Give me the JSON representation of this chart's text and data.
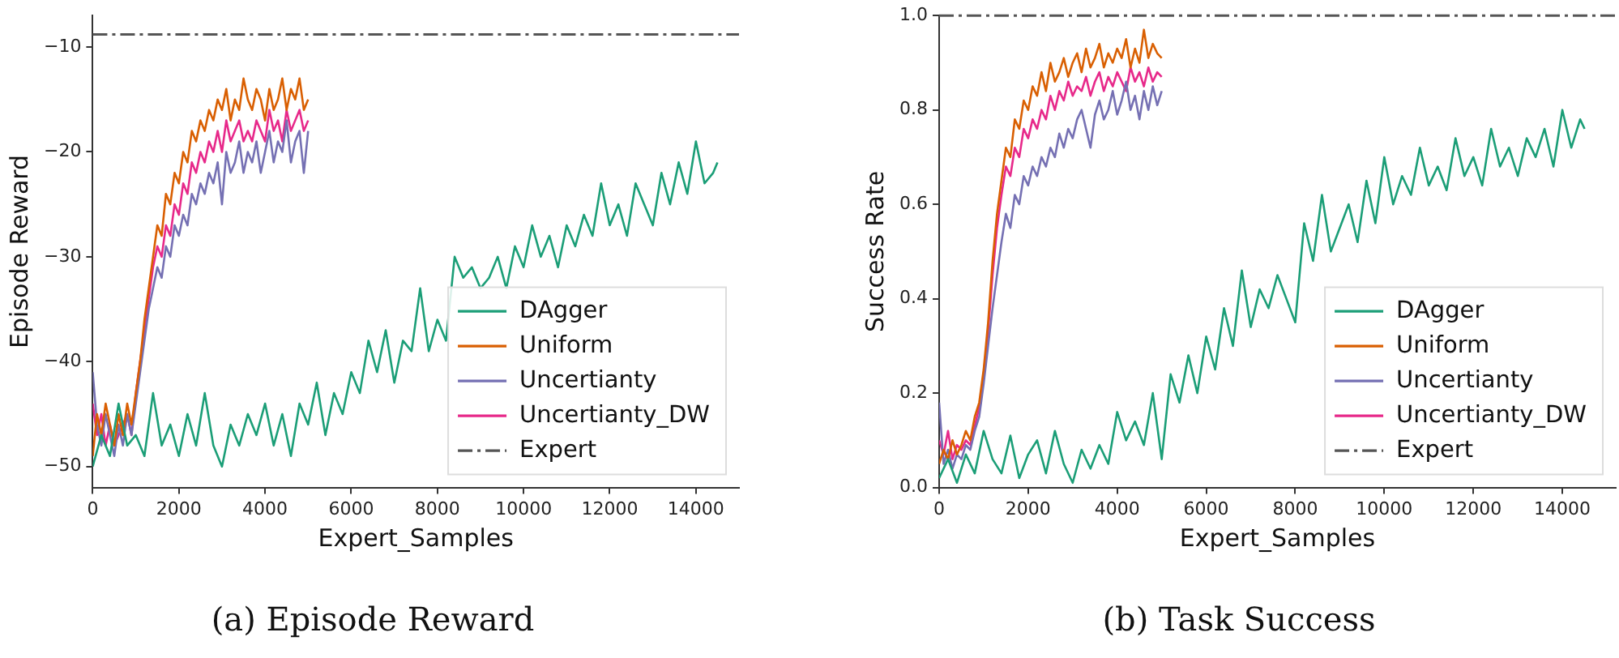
{
  "chart_data": [
    {
      "type": "line",
      "title": "(a) Episode Reward",
      "xlabel": "Expert_Samples",
      "ylabel": "Episode Reward",
      "xlim": [
        0,
        15000
      ],
      "ylim": [
        -52,
        -7
      ],
      "xticks": [
        0,
        2000,
        4000,
        6000,
        8000,
        10000,
        12000,
        14000
      ],
      "yticks": [
        {
          "value": -50,
          "label": "−50"
        },
        {
          "value": -40,
          "label": "−40"
        },
        {
          "value": -30,
          "label": "−30"
        },
        {
          "value": -20,
          "label": "−20"
        },
        {
          "value": -10,
          "label": "−10"
        }
      ],
      "grid": false,
      "legend": "bottom right",
      "marker": "none",
      "series": [
        {
          "name": "DAgger",
          "color": "#1b9e77",
          "x": [
            0,
            200,
            400,
            600,
            800,
            1000,
            1200,
            1400,
            1600,
            1800,
            2000,
            2200,
            2400,
            2600,
            2800,
            3000,
            3200,
            3400,
            3600,
            3800,
            4000,
            4200,
            4400,
            4600,
            4800,
            5000,
            5200,
            5400,
            5600,
            5800,
            6000,
            6200,
            6400,
            6600,
            6800,
            7000,
            7200,
            7400,
            7600,
            7800,
            8000,
            8200,
            8400,
            8600,
            8800,
            9000,
            9200,
            9400,
            9600,
            9800,
            10000,
            10200,
            10400,
            10600,
            10800,
            11000,
            11200,
            11400,
            11600,
            11800,
            12000,
            12200,
            12400,
            12600,
            12800,
            13000,
            13200,
            13400,
            13600,
            13800,
            14000,
            14200,
            14400,
            14500
          ],
          "values": [
            -50,
            -47,
            -49,
            -44,
            -48,
            -47,
            -49,
            -43,
            -48,
            -46,
            -49,
            -45,
            -48,
            -43,
            -48,
            -50,
            -46,
            -48,
            -45,
            -47,
            -44,
            -48,
            -45,
            -49,
            -44,
            -46,
            -42,
            -47,
            -43,
            -45,
            -41,
            -43,
            -38,
            -41,
            -37,
            -42,
            -38,
            -39,
            -33,
            -39,
            -36,
            -38,
            -30,
            -32,
            -31,
            -33,
            -32,
            -30,
            -33,
            -29,
            -31,
            -27,
            -30,
            -28,
            -31,
            -27,
            -29,
            -26,
            -28,
            -23,
            -27,
            -25,
            -28,
            -23,
            -25,
            -27,
            -22,
            -25,
            -21,
            -24,
            -19,
            -23,
            -22,
            -21
          ]
        },
        {
          "name": "Uniform",
          "color": "#d95f02",
          "x": [
            0,
            100,
            200,
            300,
            400,
            500,
            600,
            700,
            800,
            900,
            1000,
            1100,
            1200,
            1300,
            1400,
            1500,
            1600,
            1700,
            1800,
            1900,
            2000,
            2100,
            2200,
            2300,
            2400,
            2500,
            2600,
            2700,
            2800,
            2900,
            3000,
            3100,
            3200,
            3300,
            3400,
            3500,
            3600,
            3700,
            3800,
            3900,
            4000,
            4100,
            4200,
            4300,
            4400,
            4500,
            4600,
            4700,
            4800,
            4900,
            5000
          ],
          "values": [
            -49,
            -45,
            -47,
            -44,
            -46,
            -48,
            -45,
            -47,
            -44,
            -46,
            -43,
            -40,
            -36,
            -33,
            -30,
            -27,
            -28,
            -24,
            -25,
            -22,
            -23,
            -20,
            -21,
            -18,
            -19,
            -17,
            -18,
            -16,
            -17,
            -15,
            -16,
            -14,
            -17,
            -15,
            -16,
            -13,
            -15,
            -16,
            -14,
            -15,
            -17,
            -14,
            -16,
            -15,
            -13,
            -16,
            -14,
            -15,
            -13,
            -16,
            -15
          ]
        },
        {
          "name": "Uncertianty",
          "color": "#7570b3",
          "x": [
            0,
            100,
            200,
            300,
            400,
            500,
            600,
            700,
            800,
            900,
            1000,
            1100,
            1200,
            1300,
            1400,
            1500,
            1600,
            1700,
            1800,
            1900,
            2000,
            2100,
            2200,
            2300,
            2400,
            2500,
            2600,
            2700,
            2800,
            2900,
            3000,
            3100,
            3200,
            3300,
            3400,
            3500,
            3600,
            3700,
            3800,
            3900,
            4000,
            4100,
            4200,
            4300,
            4400,
            4500,
            4600,
            4700,
            4800,
            4900,
            5000
          ],
          "values": [
            -41,
            -46,
            -48,
            -45,
            -47,
            -49,
            -46,
            -48,
            -45,
            -47,
            -44,
            -41,
            -38,
            -35,
            -33,
            -31,
            -32,
            -29,
            -30,
            -27,
            -28,
            -26,
            -27,
            -24,
            -25,
            -23,
            -24,
            -22,
            -23,
            -21,
            -25,
            -20,
            -22,
            -21,
            -19,
            -22,
            -20,
            -21,
            -19,
            -22,
            -20,
            -18,
            -21,
            -19,
            -20,
            -17,
            -21,
            -19,
            -18,
            -22,
            -18
          ]
        },
        {
          "name": "Uncertianty_DW",
          "color": "#e7298a",
          "x": [
            0,
            100,
            200,
            300,
            400,
            500,
            600,
            700,
            800,
            900,
            1000,
            1100,
            1200,
            1300,
            1400,
            1500,
            1600,
            1700,
            1800,
            1900,
            2000,
            2100,
            2200,
            2300,
            2400,
            2500,
            2600,
            2700,
            2800,
            2900,
            3000,
            3100,
            3200,
            3300,
            3400,
            3500,
            3600,
            3700,
            3800,
            3900,
            4000,
            4100,
            4200,
            4300,
            4400,
            4500,
            4600,
            4700,
            4800,
            4900,
            5000
          ],
          "values": [
            -44,
            -47,
            -45,
            -48,
            -46,
            -48,
            -47,
            -46,
            -45,
            -47,
            -43,
            -40,
            -37,
            -34,
            -31,
            -29,
            -30,
            -27,
            -28,
            -25,
            -26,
            -23,
            -24,
            -21,
            -22,
            -20,
            -21,
            -19,
            -20,
            -18,
            -20,
            -17,
            -19,
            -18,
            -17,
            -19,
            -18,
            -19,
            -17,
            -18,
            -19,
            -16,
            -18,
            -17,
            -19,
            -16,
            -18,
            -17,
            -16,
            -18,
            -17
          ]
        }
      ],
      "ref_lines": [
        {
          "axis": "y",
          "value": -8.8,
          "label": "Expert",
          "color": "#555555",
          "line_style": "dashed"
        }
      ]
    },
    {
      "type": "line",
      "title": "(b) Task Success",
      "xlabel": "Expert_Samples",
      "ylabel": "Success Rate",
      "xlim": [
        0,
        15200
      ],
      "ylim": [
        0,
        1
      ],
      "xticks": [
        0,
        2000,
        4000,
        6000,
        8000,
        10000,
        12000,
        14000
      ],
      "yticks": [
        {
          "value": 0,
          "label": "0.0"
        },
        0.2,
        0.4,
        0.6,
        0.8,
        {
          "value": 1,
          "label": "1.0"
        }
      ],
      "grid": false,
      "legend": "bottom right",
      "marker": "none",
      "series": [
        {
          "name": "DAgger",
          "color": "#1b9e77",
          "x": [
            0,
            200,
            400,
            600,
            800,
            1000,
            1200,
            1400,
            1600,
            1800,
            2000,
            2200,
            2400,
            2600,
            2800,
            3000,
            3200,
            3400,
            3600,
            3800,
            4000,
            4200,
            4400,
            4600,
            4800,
            5000,
            5200,
            5400,
            5600,
            5800,
            6000,
            6200,
            6400,
            6600,
            6800,
            7000,
            7200,
            7400,
            7600,
            7800,
            8000,
            8200,
            8400,
            8600,
            8800,
            9000,
            9200,
            9400,
            9600,
            9800,
            10000,
            10200,
            10400,
            10600,
            10800,
            11000,
            11200,
            11400,
            11600,
            11800,
            12000,
            12200,
            12400,
            12600,
            12800,
            13000,
            13200,
            13400,
            13600,
            13800,
            14000,
            14200,
            14400,
            14500
          ],
          "values": [
            0.02,
            0.06,
            0.01,
            0.07,
            0.03,
            0.12,
            0.06,
            0.03,
            0.11,
            0.02,
            0.07,
            0.1,
            0.03,
            0.12,
            0.05,
            0.01,
            0.08,
            0.04,
            0.09,
            0.05,
            0.16,
            0.1,
            0.14,
            0.09,
            0.2,
            0.06,
            0.24,
            0.18,
            0.28,
            0.2,
            0.32,
            0.25,
            0.38,
            0.3,
            0.46,
            0.34,
            0.42,
            0.38,
            0.45,
            0.4,
            0.35,
            0.56,
            0.48,
            0.62,
            0.5,
            0.55,
            0.6,
            0.52,
            0.65,
            0.56,
            0.7,
            0.6,
            0.66,
            0.62,
            0.72,
            0.64,
            0.68,
            0.63,
            0.74,
            0.66,
            0.7,
            0.64,
            0.76,
            0.68,
            0.72,
            0.66,
            0.74,
            0.7,
            0.76,
            0.68,
            0.8,
            0.72,
            0.78,
            0.76
          ]
        },
        {
          "name": "Uniform",
          "color": "#d95f02",
          "x": [
            0,
            100,
            200,
            300,
            400,
            500,
            600,
            700,
            800,
            900,
            1000,
            1100,
            1200,
            1300,
            1400,
            1500,
            1600,
            1700,
            1800,
            1900,
            2000,
            2100,
            2200,
            2300,
            2400,
            2500,
            2600,
            2700,
            2800,
            2900,
            3000,
            3100,
            3200,
            3300,
            3400,
            3500,
            3600,
            3700,
            3800,
            3900,
            4000,
            4100,
            4200,
            4300,
            4400,
            4500,
            4600,
            4700,
            4800,
            4900,
            5000
          ],
          "values": [
            0.05,
            0.08,
            0.06,
            0.1,
            0.07,
            0.09,
            0.12,
            0.1,
            0.15,
            0.18,
            0.25,
            0.35,
            0.48,
            0.58,
            0.65,
            0.72,
            0.7,
            0.78,
            0.76,
            0.82,
            0.8,
            0.85,
            0.83,
            0.88,
            0.84,
            0.9,
            0.86,
            0.88,
            0.91,
            0.87,
            0.9,
            0.92,
            0.88,
            0.93,
            0.89,
            0.91,
            0.94,
            0.89,
            0.92,
            0.9,
            0.93,
            0.91,
            0.95,
            0.89,
            0.93,
            0.9,
            0.97,
            0.91,
            0.94,
            0.92,
            0.91
          ]
        },
        {
          "name": "Uncertianty",
          "color": "#7570b3",
          "x": [
            0,
            100,
            200,
            300,
            400,
            500,
            600,
            700,
            800,
            900,
            1000,
            1100,
            1200,
            1300,
            1400,
            1500,
            1600,
            1700,
            1800,
            1900,
            2000,
            2100,
            2200,
            2300,
            2400,
            2500,
            2600,
            2700,
            2800,
            2900,
            3000,
            3100,
            3200,
            3300,
            3400,
            3500,
            3600,
            3700,
            3800,
            3900,
            4000,
            4100,
            4200,
            4300,
            4400,
            4500,
            4600,
            4700,
            4800,
            4900,
            5000
          ],
          "values": [
            0.18,
            0.05,
            0.08,
            0.04,
            0.07,
            0.06,
            0.09,
            0.08,
            0.12,
            0.15,
            0.22,
            0.3,
            0.38,
            0.45,
            0.52,
            0.58,
            0.55,
            0.62,
            0.6,
            0.66,
            0.64,
            0.68,
            0.66,
            0.7,
            0.68,
            0.72,
            0.7,
            0.75,
            0.72,
            0.76,
            0.74,
            0.78,
            0.8,
            0.76,
            0.72,
            0.79,
            0.82,
            0.78,
            0.8,
            0.84,
            0.79,
            0.82,
            0.86,
            0.8,
            0.83,
            0.78,
            0.84,
            0.8,
            0.85,
            0.81,
            0.84
          ]
        },
        {
          "name": "Uncertianty_DW",
          "color": "#e7298a",
          "x": [
            0,
            100,
            200,
            300,
            400,
            500,
            600,
            700,
            800,
            900,
            1000,
            1100,
            1200,
            1300,
            1400,
            1500,
            1600,
            1700,
            1800,
            1900,
            2000,
            2100,
            2200,
            2300,
            2400,
            2500,
            2600,
            2700,
            2800,
            2900,
            3000,
            3100,
            3200,
            3300,
            3400,
            3500,
            3600,
            3700,
            3800,
            3900,
            4000,
            4100,
            4200,
            4300,
            4400,
            4500,
            4600,
            4700,
            4800,
            4900,
            5000
          ],
          "values": [
            0.1,
            0.07,
            0.12,
            0.06,
            0.09,
            0.08,
            0.1,
            0.09,
            0.13,
            0.17,
            0.24,
            0.33,
            0.45,
            0.55,
            0.62,
            0.68,
            0.66,
            0.72,
            0.7,
            0.76,
            0.74,
            0.78,
            0.76,
            0.8,
            0.78,
            0.83,
            0.8,
            0.84,
            0.82,
            0.86,
            0.83,
            0.85,
            0.84,
            0.87,
            0.83,
            0.86,
            0.88,
            0.84,
            0.87,
            0.85,
            0.88,
            0.86,
            0.84,
            0.89,
            0.86,
            0.88,
            0.85,
            0.89,
            0.86,
            0.88,
            0.87
          ]
        }
      ],
      "ref_lines": [
        {
          "axis": "y",
          "value": 1,
          "label": "Expert",
          "color": "#555555",
          "line_style": "dashed"
        }
      ]
    }
  ]
}
